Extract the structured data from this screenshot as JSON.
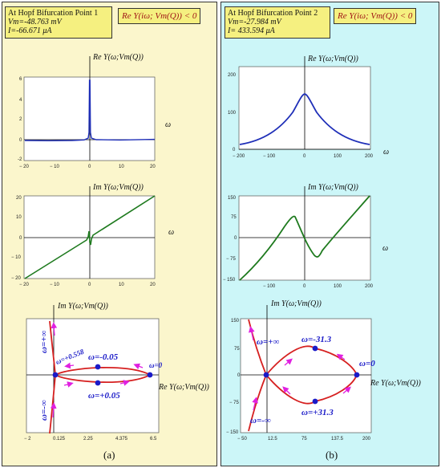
{
  "panel_a": {
    "info_title": "At Hopf Bifurcation Point 1",
    "info_vm": "Vm=-48.763 mV",
    "info_i": "I=-66.671 μA",
    "condition": "Re Y(iω; Vm(Q)) < 0",
    "caption": "(a)",
    "plot_re_title": "Re Y(ω;Vm(Q))",
    "plot_re_xlabel": "ω",
    "plot_im_title": "Im Y(ω;Vm(Q))",
    "plot_im_xlabel": "ω",
    "nyq_ylabel": "Im Y(ω;Vm(Q))",
    "nyq_xlabel": "Re Y(ω;Vm(Q))",
    "labels": {
      "w_pinf": "ω=+∞",
      "w_ninf": "ω=-∞",
      "w_0558": "ω=+0.558",
      "w_m005": "ω=-0.05",
      "w_p005": "ω=+0.05",
      "w_0": "ω=0"
    }
  },
  "panel_b": {
    "info_title": "At Hopf Bifurcation Point 2",
    "info_vm": "Vm=-27.984 mV",
    "info_i": "I= 433.594 μA",
    "condition": "Re Y(iω; Vm(Q)) < 0",
    "caption": "(b)",
    "plot_re_title": "Re Y(ω;Vm(Q))",
    "plot_re_xlabel": "ω",
    "plot_im_title": "Im Y(ω;Vm(Q))",
    "plot_im_xlabel": "ω",
    "nyq_ylabel": "Im Y(ω;Vm(Q))",
    "nyq_xlabel": "Re Y(ω;Vm(Q))",
    "labels": {
      "w_pinf": "ω=+∞",
      "w_ninf": "ω=-∞",
      "w_m313": "ω=-31.3",
      "w_p313": "ω=+31.3",
      "w_0": "ω=0"
    }
  },
  "chart_data": [
    {
      "type": "line",
      "panel": "a",
      "name": "Re Y(ω) at Hopf point 1",
      "xlim": [
        -20,
        20
      ],
      "ylim": [
        -2,
        6
      ],
      "xticks": [
        "-20",
        "-10",
        "0",
        "10",
        "20"
      ],
      "yticks": [
        "6",
        "4",
        "2",
        "0",
        "-2"
      ],
      "color": "#1f2fb8"
    },
    {
      "type": "line",
      "panel": "a",
      "name": "Im Y(ω) at Hopf point 1",
      "xlim": [
        -20,
        20
      ],
      "ylim": [
        -20,
        20
      ],
      "xticks": [
        "-20",
        "-10",
        "0",
        "10",
        "20"
      ],
      "yticks": [
        "20",
        "10",
        "0",
        "-10",
        "-20"
      ],
      "color": "#1e7a1e"
    },
    {
      "type": "scatter",
      "panel": "a",
      "name": "Nyquist at Hopf point 1",
      "xlim": [
        -2,
        6.5
      ],
      "xticks": [
        "-2",
        "0.125",
        "2.25",
        "4.375",
        "6.5"
      ],
      "color": "#d62020"
    },
    {
      "type": "line",
      "panel": "b",
      "name": "Re Y(ω) at Hopf point 2",
      "xlim": [
        -200,
        200
      ],
      "ylim": [
        0,
        220
      ],
      "xticks": [
        "-200",
        "-100",
        "0",
        "100",
        "200"
      ],
      "yticks": [
        "200",
        "100",
        "0"
      ],
      "color": "#1f2fb8"
    },
    {
      "type": "line",
      "panel": "b",
      "name": "Im Y(ω) at Hopf point 2",
      "xlim": [
        -200,
        200
      ],
      "ylim": [
        -150,
        150
      ],
      "xticks": [
        "-200",
        "-100",
        "0",
        "100",
        "200"
      ],
      "yticks": [
        "150",
        "75",
        "0",
        "-75",
        "-150"
      ],
      "color": "#1e7a1e"
    },
    {
      "type": "scatter",
      "panel": "b",
      "name": "Nyquist at Hopf point 2",
      "xlim": [
        -50,
        200
      ],
      "ylim": [
        -150,
        150
      ],
      "xticks": [
        "-50",
        "12.5",
        "75",
        "137.5",
        "200"
      ],
      "yticks": [
        "150",
        "75",
        "0",
        "-75",
        "-150"
      ],
      "color": "#d62020"
    }
  ]
}
